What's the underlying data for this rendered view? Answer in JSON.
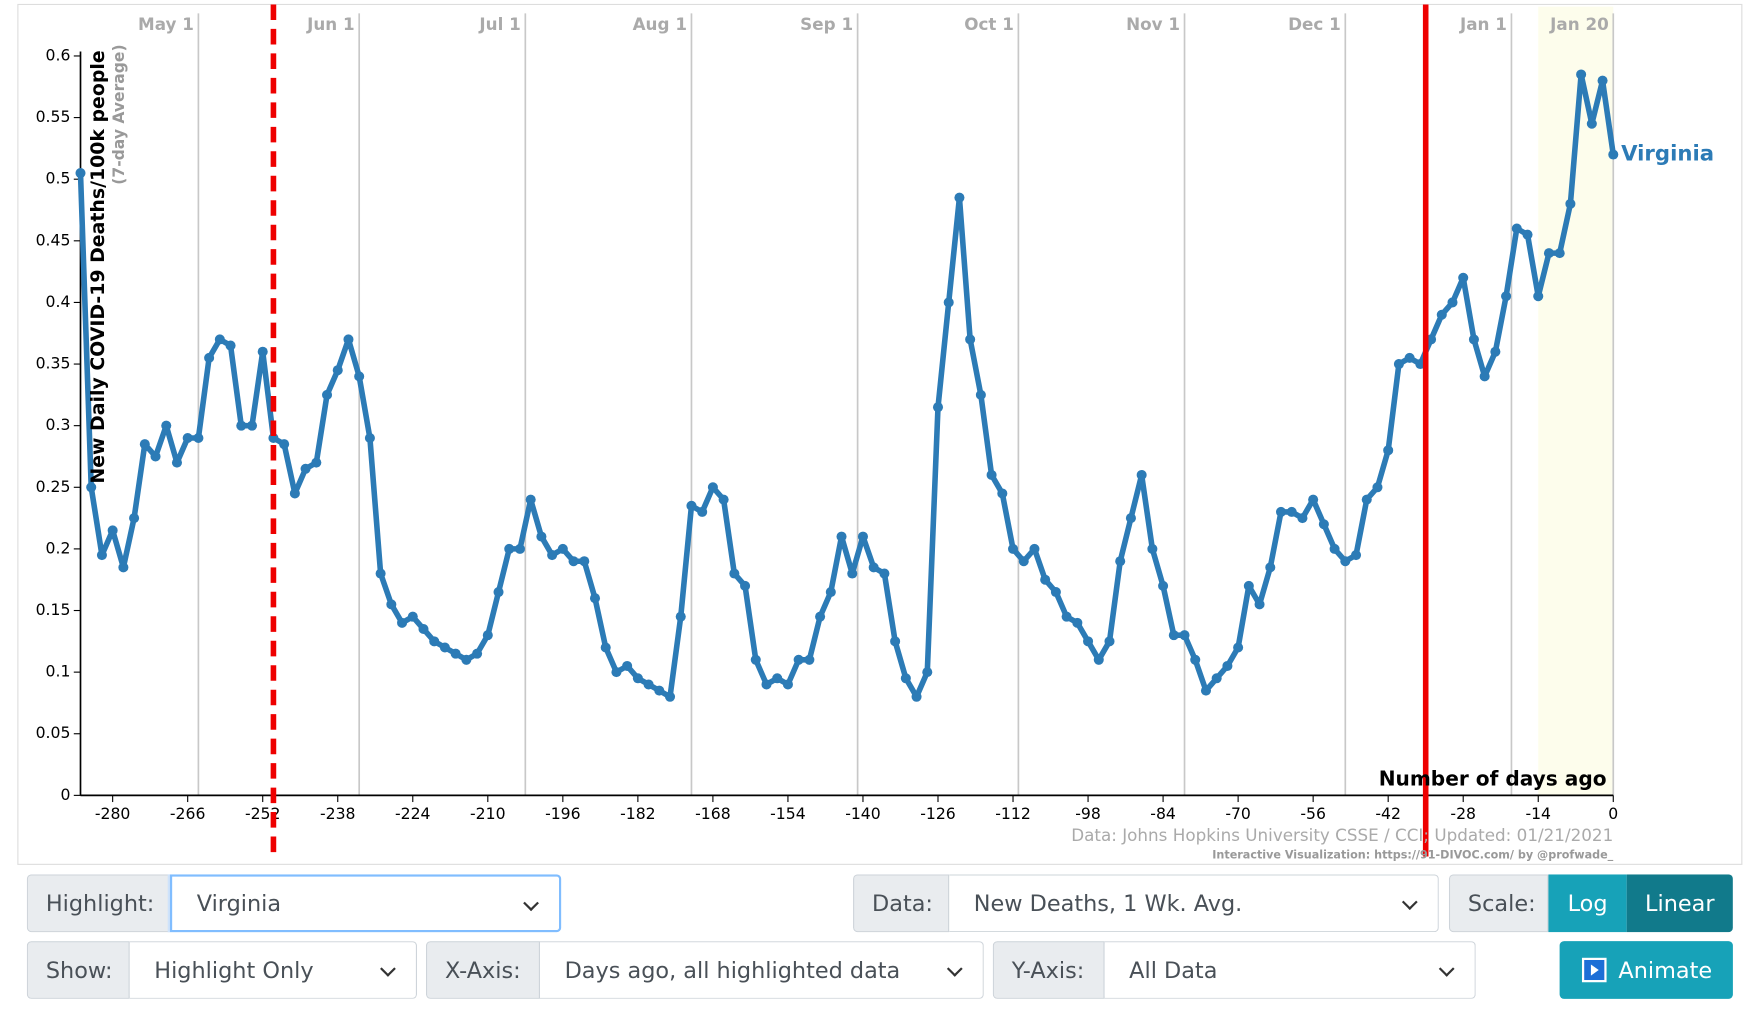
{
  "chart_data": {
    "type": "line",
    "y_label": "New Daily COVID-19 Deaths/100k people",
    "y_sublabel": "(7-day Average)",
    "x_label": "Number of days ago",
    "source": "Data: Johns Hopkins University CSSE / CCI; Updated: 01/21/2021",
    "credit": "Interactive Visualization: https://91-DIVOC.com/ by @profwade_",
    "x": [
      -286,
      -284,
      -282,
      -280,
      -278,
      -276,
      -274,
      -272,
      -270,
      -268,
      -266,
      -264,
      -262,
      -260,
      -258,
      -256,
      -254,
      -252,
      -250,
      -248,
      -246,
      -244,
      -242,
      -240,
      -238,
      -236,
      -234,
      -232,
      -230,
      -228,
      -226,
      -224,
      -222,
      -220,
      -218,
      -216,
      -214,
      -212,
      -210,
      -208,
      -206,
      -204,
      -202,
      -200,
      -198,
      -196,
      -194,
      -192,
      -190,
      -188,
      -186,
      -184,
      -182,
      -180,
      -178,
      -176,
      -174,
      -172,
      -170,
      -168,
      -166,
      -164,
      -162,
      -160,
      -158,
      -156,
      -154,
      -152,
      -150,
      -148,
      -146,
      -144,
      -142,
      -140,
      -138,
      -136,
      -134,
      -132,
      -130,
      -128,
      -126,
      -124,
      -122,
      -120,
      -118,
      -116,
      -114,
      -112,
      -110,
      -108,
      -106,
      -104,
      -102,
      -100,
      -98,
      -96,
      -94,
      -92,
      -90,
      -88,
      -86,
      -84,
      -82,
      -80,
      -78,
      -76,
      -74,
      -72,
      -70,
      -68,
      -66,
      -64,
      -62,
      -60,
      -58,
      -56,
      -54,
      -52,
      -50,
      -48,
      -46,
      -44,
      -42,
      -40,
      -38,
      -36,
      -34,
      -32,
      -30,
      -28,
      -26,
      -24,
      -22,
      -20,
      -18,
      -16,
      -14,
      -12,
      -10,
      -8,
      -6,
      -4,
      -2,
      0
    ],
    "series": [
      {
        "name": "Virginia",
        "color": "#2c7bb6",
        "values": [
          0.505,
          0.25,
          0.195,
          0.215,
          0.185,
          0.225,
          0.285,
          0.275,
          0.3,
          0.27,
          0.29,
          0.29,
          0.355,
          0.37,
          0.365,
          0.3,
          0.3,
          0.36,
          0.29,
          0.285,
          0.245,
          0.265,
          0.27,
          0.325,
          0.345,
          0.37,
          0.34,
          0.29,
          0.18,
          0.155,
          0.14,
          0.145,
          0.135,
          0.125,
          0.12,
          0.115,
          0.11,
          0.115,
          0.13,
          0.165,
          0.2,
          0.2,
          0.24,
          0.21,
          0.195,
          0.2,
          0.19,
          0.19,
          0.16,
          0.12,
          0.1,
          0.105,
          0.095,
          0.09,
          0.085,
          0.08,
          0.145,
          0.235,
          0.23,
          0.25,
          0.24,
          0.18,
          0.17,
          0.11,
          0.09,
          0.095,
          0.09,
          0.11,
          0.11,
          0.145,
          0.165,
          0.21,
          0.18,
          0.21,
          0.185,
          0.18,
          0.125,
          0.095,
          0.08,
          0.1,
          0.315,
          0.4,
          0.485,
          0.37,
          0.325,
          0.26,
          0.245,
          0.2,
          0.19,
          0.2,
          0.175,
          0.165,
          0.145,
          0.14,
          0.125,
          0.11,
          0.125,
          0.19,
          0.225,
          0.26,
          0.2,
          0.17,
          0.13,
          0.13,
          0.11,
          0.085,
          0.095,
          0.105,
          0.12,
          0.17,
          0.155,
          0.185,
          0.23,
          0.23,
          0.225,
          0.24,
          0.22,
          0.2,
          0.19,
          0.195,
          0.24,
          0.25,
          0.28,
          0.35,
          0.355,
          0.35,
          0.37,
          0.39,
          0.4,
          0.42,
          0.37,
          0.34,
          0.36,
          0.405,
          0.46,
          0.455,
          0.405,
          0.44,
          0.44,
          0.48,
          0.585,
          0.545,
          0.58,
          0.52
        ]
      }
    ],
    "xlim": [
      -286,
      0
    ],
    "ylim": [
      0,
      0.64
    ],
    "xticks": [
      -280,
      -266,
      -252,
      -238,
      -224,
      -210,
      -196,
      -182,
      -168,
      -154,
      -140,
      -126,
      -112,
      -98,
      -84,
      -70,
      -56,
      -42,
      -28,
      -14,
      0
    ],
    "yticks": [
      0,
      0.05,
      0.1,
      0.15,
      0.2,
      0.25,
      0.3,
      0.35,
      0.4,
      0.45,
      0.5,
      0.55,
      0.6
    ],
    "x2ticks": [
      {
        "value": -264,
        "label": "May 1"
      },
      {
        "value": -234,
        "label": "Jun 1"
      },
      {
        "value": -203,
        "label": "Jul 1"
      },
      {
        "value": -172,
        "label": "Aug 1"
      },
      {
        "value": -141,
        "label": "Sep 1"
      },
      {
        "value": -111,
        "label": "Oct 1"
      },
      {
        "value": -80,
        "label": "Nov 1"
      },
      {
        "value": -50,
        "label": "Dec 1"
      },
      {
        "value": -19,
        "label": "Jan 1"
      },
      {
        "value": 0,
        "label": "Jan 20"
      }
    ],
    "vlines": [
      {
        "x": -250,
        "color": "#ee0000",
        "style": "dashed"
      },
      {
        "x": -35,
        "color": "#ee0000",
        "style": "solid"
      }
    ],
    "shaded": {
      "from": -14,
      "to": 0,
      "color": "#fdfdec"
    }
  },
  "controls": {
    "highlight": {
      "label": "Highlight:",
      "value": "Virginia"
    },
    "data": {
      "label": "Data:",
      "value": "New Deaths, 1 Wk. Avg."
    },
    "scale": {
      "label": "Scale:",
      "options": [
        "Log",
        "Linear"
      ]
    },
    "show": {
      "label": "Show:",
      "value": "Highlight Only"
    },
    "xaxis": {
      "label": "X-Axis:",
      "value": "Days ago, all highlighted data"
    },
    "yaxis": {
      "label": "Y-Axis:",
      "value": "All Data"
    },
    "animate": "Animate"
  }
}
